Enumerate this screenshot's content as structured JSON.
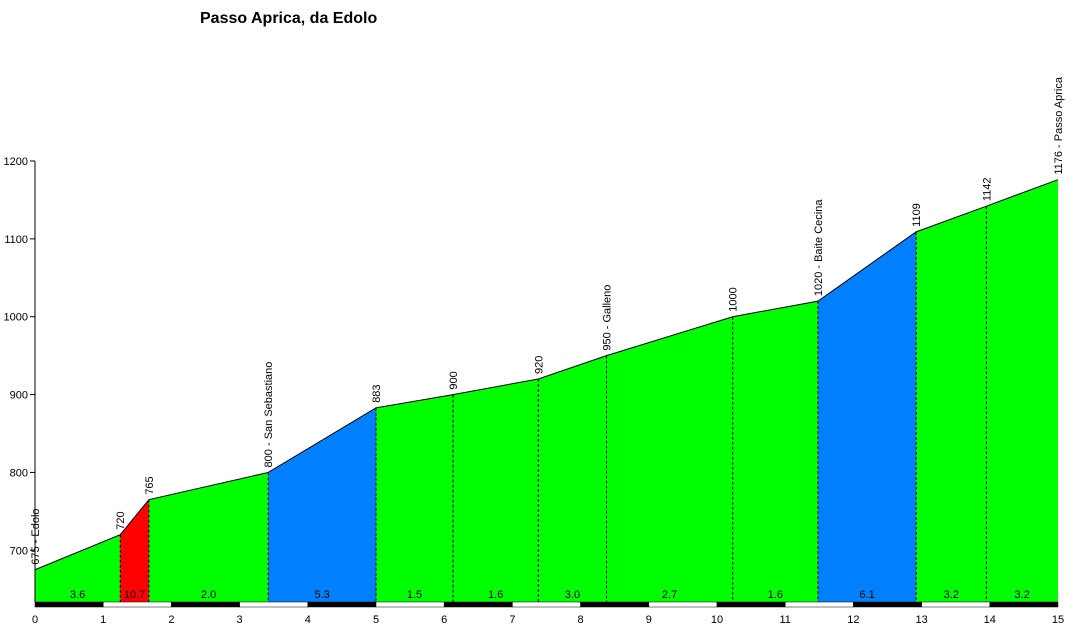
{
  "chart_data": {
    "type": "area",
    "title": "Passo Aprica, da Edolo",
    "xlabel": "",
    "ylabel": "",
    "xlim": [
      0,
      15
    ],
    "ylim": [
      640,
      1200
    ],
    "y_ticks": [
      700,
      800,
      900,
      1000,
      1100,
      1200
    ],
    "x_ticks": [
      0,
      1,
      2,
      3,
      4,
      5,
      6,
      7,
      8,
      9,
      10,
      11,
      12,
      13,
      14,
      15
    ],
    "grid": false,
    "legend": "none",
    "points": [
      {
        "x": 0,
        "y": 675,
        "label": "675 - Edolo"
      },
      {
        "x": 1.25,
        "y": 720,
        "label": "720"
      },
      {
        "x": 1.67,
        "y": 765,
        "label": "765"
      },
      {
        "x": 3.42,
        "y": 800,
        "label": "800 - San Sebastiano"
      },
      {
        "x": 5.0,
        "y": 883,
        "label": "883"
      },
      {
        "x": 6.13,
        "y": 900,
        "label": "900"
      },
      {
        "x": 7.38,
        "y": 920,
        "label": "920"
      },
      {
        "x": 8.38,
        "y": 950,
        "label": "950 - Galleno"
      },
      {
        "x": 10.23,
        "y": 1000,
        "label": "1000"
      },
      {
        "x": 11.48,
        "y": 1020,
        "label": "1020 - Baite Cecina"
      },
      {
        "x": 12.92,
        "y": 1109,
        "label": "1109"
      },
      {
        "x": 13.95,
        "y": 1142,
        "label": "1142"
      },
      {
        "x": 15.0,
        "y": 1176,
        "label": "1176 - Passo Aprica"
      }
    ],
    "segments": [
      {
        "grade": "3.6",
        "color": "#00ff00"
      },
      {
        "grade": "10.7",
        "color": "#ff0000"
      },
      {
        "grade": "2.0",
        "color": "#00ff00"
      },
      {
        "grade": "5.3",
        "color": "#0080ff"
      },
      {
        "grade": "1.5",
        "color": "#00ff00"
      },
      {
        "grade": "1.6",
        "color": "#00ff00"
      },
      {
        "grade": "3.0",
        "color": "#00ff00"
      },
      {
        "grade": "2.7",
        "color": "#00ff00"
      },
      {
        "grade": "1.6",
        "color": "#00ff00"
      },
      {
        "grade": "6.1",
        "color": "#0080ff"
      },
      {
        "grade": "3.2",
        "color": "#00ff00"
      },
      {
        "grade": "3.2",
        "color": "#00ff00"
      }
    ]
  }
}
